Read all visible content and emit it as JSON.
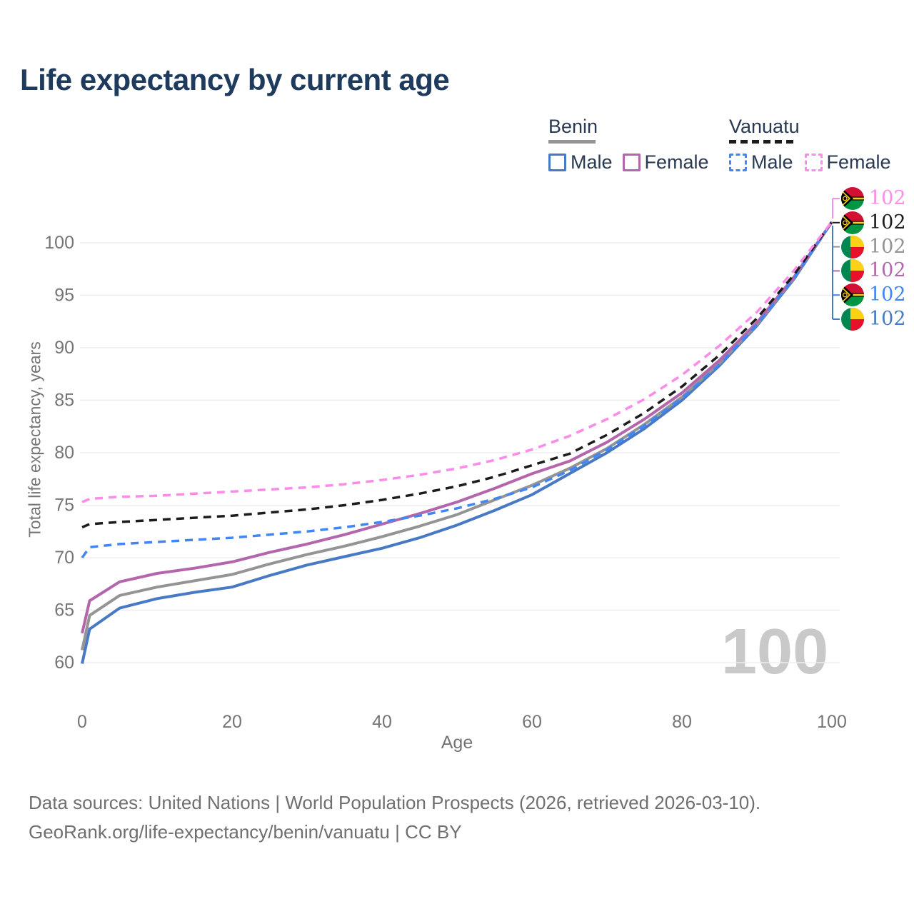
{
  "title": "Life expectancy by current age",
  "legend": {
    "benin": {
      "label": "Benin",
      "male": "Male",
      "female": "Female"
    },
    "vanuatu": {
      "label": "Vanuatu",
      "male": "Male",
      "female": "Female"
    }
  },
  "watermark_age": "100",
  "footer": {
    "line1": "Data sources: United Nations | World Population Prospects (2026, retrieved 2026-03-10).",
    "line2": "GeoRank.org/life-expectancy/benin/vanuatu | CC BY"
  },
  "colors": {
    "title": "#1e3a5c",
    "legend_text": "#2a3a52",
    "axis_text": "#757575",
    "grid": "#ededed",
    "watermark": "#c9c9c9",
    "benin_male": "#4779c4",
    "benin_female": "#b366ab",
    "benin_both": "#949494",
    "vanuatu_male": "#4286f5",
    "vanuatu_female": "#fb8ce9",
    "vanuatu_both": "#1c1c1c",
    "flag_benin_green": "#008751",
    "flag_benin_yellow": "#fcd116",
    "flag_benin_red": "#e8112d",
    "flag_vanuatu_red": "#d21034",
    "flag_vanuatu_green": "#009543",
    "flag_vanuatu_black": "#000000",
    "flag_vanuatu_yellow": "#fdce12"
  },
  "end_labels": [
    {
      "flag": "vanuatu",
      "series": "vanuatu_female",
      "value": "102"
    },
    {
      "flag": "vanuatu",
      "series": "vanuatu_both",
      "value": "102"
    },
    {
      "flag": "benin",
      "series": "benin_both",
      "value": "102"
    },
    {
      "flag": "benin",
      "series": "benin_female",
      "value": "102"
    },
    {
      "flag": "vanuatu",
      "series": "vanuatu_male",
      "value": "102"
    },
    {
      "flag": "benin",
      "series": "benin_male",
      "value": "102"
    }
  ],
  "chart_data": {
    "type": "line",
    "title": "Life expectancy by current age",
    "xlabel": "Age",
    "ylabel": "Total life expectancy, years",
    "xlim": [
      0,
      100
    ],
    "ylim": [
      60,
      100
    ],
    "x_ticks": [
      0,
      20,
      40,
      60,
      80,
      100
    ],
    "y_ticks": [
      60,
      65,
      70,
      75,
      80,
      85,
      90,
      95,
      100
    ],
    "grid": "horizontal",
    "legend_position": "top-right",
    "x": [
      0,
      1,
      5,
      10,
      15,
      20,
      25,
      30,
      35,
      40,
      45,
      50,
      55,
      60,
      65,
      70,
      75,
      80,
      85,
      90,
      95,
      100
    ],
    "series": [
      {
        "name": "Benin Male",
        "key": "benin_male",
        "style": "solid",
        "values": [
          59.9,
          63.2,
          65.2,
          66.1,
          66.7,
          67.2,
          68.3,
          69.3,
          70.1,
          70.9,
          71.9,
          73.1,
          74.5,
          76.0,
          78.0,
          80.0,
          82.3,
          85.0,
          88.3,
          92.1,
          96.6,
          102
        ]
      },
      {
        "name": "Benin Both sexes",
        "key": "benin_both",
        "style": "solid",
        "values": [
          61.2,
          64.5,
          66.4,
          67.2,
          67.8,
          68.4,
          69.4,
          70.3,
          71.1,
          72.0,
          73.0,
          74.1,
          75.5,
          76.9,
          78.5,
          80.4,
          82.7,
          85.3,
          88.5,
          92.2,
          96.7,
          102
        ]
      },
      {
        "name": "Benin Female",
        "key": "benin_female",
        "style": "solid",
        "values": [
          62.8,
          65.9,
          67.7,
          68.5,
          69.0,
          69.6,
          70.5,
          71.3,
          72.2,
          73.2,
          74.2,
          75.3,
          76.6,
          78.0,
          79.2,
          81.0,
          83.2,
          85.7,
          88.8,
          92.4,
          96.8,
          102
        ]
      },
      {
        "name": "Vanuatu Male",
        "key": "vanuatu_male",
        "style": "dashed",
        "values": [
          70.0,
          71.0,
          71.3,
          71.5,
          71.7,
          71.9,
          72.2,
          72.5,
          72.9,
          73.4,
          74.0,
          74.7,
          75.6,
          76.7,
          78.3,
          80.3,
          82.6,
          85.2,
          88.4,
          92.2,
          96.7,
          102
        ]
      },
      {
        "name": "Vanuatu Both sexes",
        "key": "vanuatu_both",
        "style": "dashed",
        "values": [
          72.9,
          73.2,
          73.4,
          73.6,
          73.8,
          74.0,
          74.3,
          74.6,
          75.0,
          75.5,
          76.1,
          76.8,
          77.7,
          78.8,
          79.9,
          81.7,
          83.8,
          86.3,
          89.3,
          92.8,
          97.0,
          102
        ]
      },
      {
        "name": "Vanuatu Female",
        "key": "vanuatu_female",
        "style": "dashed",
        "values": [
          75.3,
          75.6,
          75.8,
          75.9,
          76.1,
          76.3,
          76.5,
          76.7,
          77.0,
          77.4,
          77.9,
          78.5,
          79.3,
          80.3,
          81.6,
          83.2,
          85.1,
          87.4,
          90.2,
          93.4,
          97.4,
          102
        ]
      }
    ],
    "end_value_label": 102
  }
}
